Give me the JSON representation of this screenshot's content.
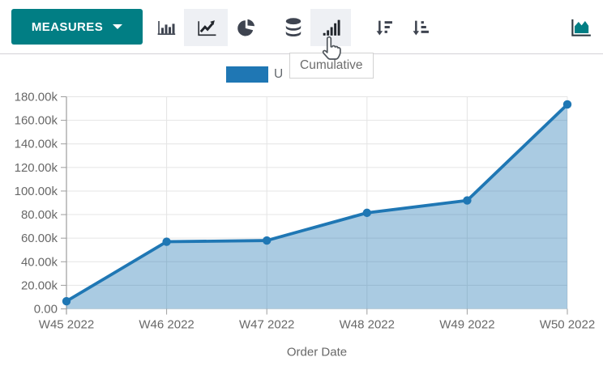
{
  "colors": {
    "accent_teal": "#017e84",
    "icon_dark": "#3e4450",
    "icon_active": "#22262c",
    "active_bg": "#eef0f4",
    "chart_line": "#1f77b4",
    "chart_fill_opacity": 0.38,
    "grid": "#e4e4e4",
    "axis": "#9e9e9e",
    "text_gray": "#686868",
    "header_divider": "#d4d2d6",
    "tooltip_border": "#d2d2d2",
    "tooltip_text": "#6d6d6d"
  },
  "toolbar": {
    "measures_label": "MEASURES",
    "view_buttons": [
      {
        "name": "bar-chart",
        "active": false
      },
      {
        "name": "line-chart",
        "active": true
      },
      {
        "name": "pie-chart",
        "active": false
      }
    ],
    "option_buttons": [
      {
        "name": "stacked",
        "active": false
      },
      {
        "name": "cumulative",
        "active": false,
        "hovered": true,
        "tooltip": "Cumulative"
      },
      {
        "name": "sort-descending",
        "active": false
      },
      {
        "name": "sort-ascending",
        "active": false
      }
    ],
    "right_button": {
      "name": "area-chart-view"
    }
  },
  "tooltip": {
    "text": "Cumulative"
  },
  "legend": {
    "swatch_color": "#1f77b4",
    "visible_text": "U"
  },
  "chart_data": {
    "type": "area",
    "x": [
      "W45 2022",
      "W46 2022",
      "W47 2022",
      "W48 2022",
      "W49 2022",
      "W50 2022"
    ],
    "series": [
      {
        "name": "U",
        "values": [
          6500,
          57000,
          58000,
          81500,
          92000,
          173500
        ]
      }
    ],
    "title": "",
    "xlabel": "Order Date",
    "ylabel": "",
    "ylim": [
      0,
      180000
    ],
    "ytick_step": 20000,
    "ytick_suffix": "k",
    "grid": true,
    "legend_position": "top-center",
    "markers": true
  }
}
